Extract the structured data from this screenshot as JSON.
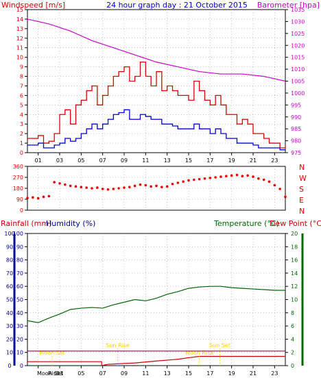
{
  "header": {
    "left_title": "Windspeed [m/s]",
    "center_title": "24 hour graph day : 21 October 2015",
    "right_title": "Barometer [hpa]"
  },
  "colors": {
    "frame": "#000000",
    "grid": "#9a9a9a",
    "gust": "#dd0000",
    "wind": "#0000dd",
    "barometer": "#cc00cc",
    "direction": "#ee0000",
    "rain": "#cc0000",
    "humidity": "#000099",
    "temperature": "#006600",
    "dewpoint": "#cc0000",
    "sun_moon": "#ffcc00"
  },
  "chart_data": [
    {
      "type": "line",
      "name": "wind-panel",
      "xlabels": [
        "01",
        "03",
        "05",
        "07",
        "09",
        "11",
        "13",
        "15",
        "17",
        "19",
        "21",
        "23"
      ],
      "x_hours": [
        1,
        3,
        5,
        7,
        9,
        11,
        13,
        15,
        17,
        19,
        21,
        23
      ],
      "xlim": [
        0,
        24
      ],
      "left_axis": {
        "ticks": [
          0,
          1,
          2,
          3,
          4,
          5,
          6,
          7,
          8,
          9,
          10,
          11,
          12,
          13,
          14,
          15
        ],
        "ylim": [
          0,
          15
        ]
      },
      "right_axis": {
        "ticks": [
          975,
          980,
          985,
          990,
          995,
          1000,
          1005,
          1010,
          1015,
          1020,
          1025,
          1030,
          1035
        ],
        "ylim": [
          975,
          1035
        ]
      },
      "series": [
        {
          "axis": "left",
          "x": [
            0,
            1,
            1.5,
            2,
            2.5,
            3,
            3.5,
            4,
            4.5,
            5,
            5.5,
            6,
            6.5,
            7,
            7.5,
            8,
            8.5,
            9,
            9.5,
            10,
            10.5,
            11,
            11.5,
            12,
            12.5,
            13,
            13.5,
            14,
            14.5,
            15,
            15.5,
            16,
            16.5,
            17,
            17.5,
            18,
            18.5,
            19,
            19.5,
            20,
            20.5,
            21,
            21.5,
            22,
            22.5,
            23,
            23.5,
            24
          ],
          "values": [
            1.5,
            1.8,
            1,
            1.2,
            2,
            4,
            4.5,
            3,
            5,
            5.5,
            6.5,
            7,
            5,
            6,
            7,
            8,
            8.5,
            9,
            7.5,
            8,
            9.5,
            8,
            7,
            8.5,
            6.5,
            7,
            6.5,
            6,
            6,
            5.5,
            7.5,
            6.5,
            5.5,
            5,
            6,
            5,
            4,
            4,
            3,
            3.5,
            3,
            2,
            2,
            1.5,
            1,
            1,
            0.5,
            0.8
          ]
        },
        {
          "axis": "left",
          "x": [
            0,
            1,
            1.5,
            2,
            2.5,
            3,
            3.5,
            4,
            4.5,
            5,
            5.5,
            6,
            6.5,
            7,
            7.5,
            8,
            8.5,
            9,
            9.5,
            10,
            10.5,
            11,
            11.5,
            12,
            12.5,
            13,
            13.5,
            14,
            14.5,
            15,
            15.5,
            16,
            16.5,
            17,
            17.5,
            18,
            18.5,
            19,
            19.5,
            20,
            20.5,
            21,
            21.5,
            22,
            22.5,
            23,
            23.5,
            24
          ],
          "values": [
            0.8,
            1,
            0.5,
            0.5,
            0.8,
            1,
            1.5,
            1.2,
            1.5,
            2,
            2.5,
            3,
            2.5,
            3,
            3.5,
            4,
            4.2,
            4.5,
            3.5,
            3.5,
            4,
            3.8,
            3.5,
            3.5,
            3,
            3,
            2.8,
            2.5,
            2.5,
            2.5,
            3,
            2.5,
            2.5,
            2,
            2.5,
            2,
            1.5,
            1.5,
            1,
            1,
            1,
            0.8,
            0.5,
            0.5,
            0.5,
            0.5,
            0.3,
            0.3
          ]
        },
        {
          "axis": "right",
          "x": [
            0,
            2,
            4,
            6,
            8,
            10,
            12,
            14,
            16,
            18,
            20,
            22,
            24
          ],
          "values": [
            1031,
            1029,
            1026,
            1022,
            1019,
            1016,
            1013,
            1011,
            1009,
            1008,
            1008,
            1007,
            1005
          ]
        }
      ]
    },
    {
      "type": "scatter",
      "name": "direction-panel",
      "xlim": [
        0,
        24
      ],
      "left_axis": {
        "ticks": [
          0,
          90,
          180,
          270,
          360
        ],
        "ylim": [
          0,
          360
        ]
      },
      "compass": [
        "N",
        "W",
        "S",
        "E",
        "N"
      ],
      "x": [
        0,
        0.5,
        1,
        1.5,
        2,
        2.5,
        3,
        3.5,
        4,
        4.5,
        5,
        5.5,
        6,
        6.5,
        7,
        7.5,
        8,
        8.5,
        9,
        9.5,
        10,
        10.5,
        11,
        11.5,
        12,
        12.5,
        13,
        13.5,
        14,
        14.5,
        15,
        15.5,
        16,
        16.5,
        17,
        17.5,
        18,
        18.5,
        19,
        19.5,
        20,
        20.5,
        21,
        21.5,
        22,
        22.5,
        23,
        23.5,
        24
      ],
      "values": [
        100,
        105,
        98,
        110,
        115,
        230,
        220,
        210,
        200,
        195,
        190,
        185,
        180,
        185,
        175,
        170,
        175,
        180,
        185,
        190,
        200,
        210,
        205,
        195,
        200,
        190,
        195,
        215,
        225,
        235,
        245,
        250,
        255,
        260,
        265,
        270,
        275,
        280,
        285,
        290,
        280,
        285,
        275,
        260,
        250,
        235,
        205,
        175,
        110
      ]
    },
    {
      "type": "line",
      "name": "temp-panel",
      "xlabels": [
        "01",
        "03",
        "05",
        "07",
        "09",
        "11",
        "13",
        "15",
        "17",
        "19",
        "21",
        "23"
      ],
      "x_hours": [
        1,
        3,
        5,
        7,
        9,
        11,
        13,
        15,
        17,
        19,
        21,
        23
      ],
      "xlim": [
        0,
        24
      ],
      "left_axis": {
        "ticks": [
          0,
          10,
          20,
          30,
          40,
          50,
          60,
          70,
          80,
          90,
          100
        ],
        "ylim": [
          0,
          100
        ]
      },
      "right_axis": {
        "ticks": [
          0,
          2,
          4,
          6,
          8,
          10,
          12,
          14,
          16,
          18,
          20
        ],
        "ylim": [
          0,
          20
        ]
      },
      "series": [
        {
          "axis": "right",
          "x": [
            0,
            1,
            2,
            3,
            4,
            5,
            6,
            7,
            8,
            9,
            10,
            11,
            12,
            13,
            14,
            15,
            16,
            17,
            18,
            19,
            20,
            21,
            22,
            23,
            24
          ],
          "values": [
            6.8,
            6.5,
            7.2,
            7.8,
            8.5,
            8.7,
            8.8,
            8.7,
            9.2,
            9.6,
            10,
            9.8,
            10.2,
            10.8,
            11.2,
            11.7,
            11.9,
            12,
            12,
            11.8,
            11.7,
            11.6,
            11.5,
            11.4,
            11.4
          ]
        },
        {
          "axis": "left",
          "x": [
            0,
            6.9,
            6.9,
            7.5,
            10,
            12,
            14,
            15,
            16,
            24
          ],
          "values": [
            3,
            3,
            0,
            1,
            2,
            3.5,
            4.8,
            6,
            7,
            7
          ]
        }
      ],
      "annotations": [
        {
          "label": "Moon Set",
          "x": 2.3,
          "y_pct": 8.2
        },
        {
          "label": "Sun Rise",
          "x": 8.4,
          "y_pct": 14
        },
        {
          "label": "Sun Set",
          "x": 17.9,
          "y_pct": 14
        },
        {
          "label": "Moon Rise",
          "x": 16.0,
          "y_pct": 8.2
        }
      ],
      "axis_corner_labels": [
        "Moon",
        "Rise",
        "Set"
      ]
    }
  ],
  "panels": {
    "direction": {},
    "temp": {
      "left_title_1": "Rainfall (mm)",
      "left_title_2": "Humidity (%)",
      "right_title_1": "Temperature (°C)",
      "right_title_2": "Dew Point (°C)"
    }
  }
}
